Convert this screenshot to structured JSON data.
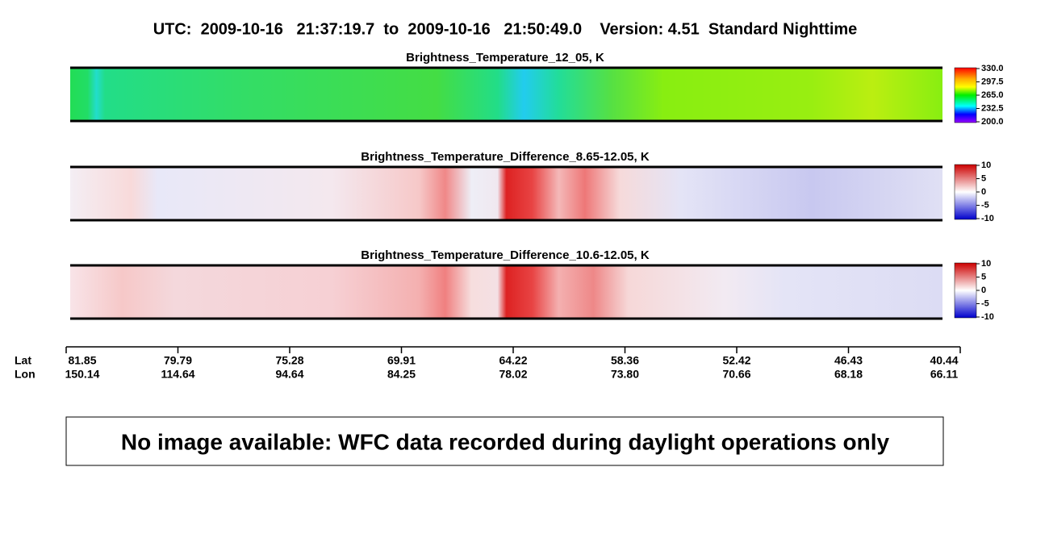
{
  "title": "UTC:  2009-10-16   21:37:19.7  to  2009-10-16   21:50:49.0    Version: 4.51  Standard Nighttime",
  "panels": [
    {
      "title": "Brightness_Temperature_12_05, K",
      "colorbar_labels": [
        "330.0",
        "297.5",
        "265.0",
        "232.5",
        "200.0"
      ]
    },
    {
      "title": "Brightness_Temperature_Difference_8.65-12.05, K",
      "colorbar_labels": [
        "10",
        "5",
        "0",
        "-5",
        "-10"
      ]
    },
    {
      "title": "Brightness_Temperature_Difference_10.6-12.05, K",
      "colorbar_labels": [
        "10",
        "5",
        "0",
        "-5",
        "-10"
      ]
    }
  ],
  "axis": {
    "row_labels": [
      "Lat",
      "Lon"
    ],
    "ticks": [
      {
        "lat": "81.85",
        "lon": "150.14"
      },
      {
        "lat": "79.79",
        "lon": "114.64"
      },
      {
        "lat": "75.28",
        "lon": "94.64"
      },
      {
        "lat": "69.91",
        "lon": "84.25"
      },
      {
        "lat": "64.22",
        "lon": "78.02"
      },
      {
        "lat": "58.36",
        "lon": "73.80"
      },
      {
        "lat": "52.42",
        "lon": "70.66"
      },
      {
        "lat": "46.43",
        "lon": "68.18"
      },
      {
        "lat": "40.44",
        "lon": "66.11"
      }
    ]
  },
  "notice": "No image available: WFC data recorded during daylight operations only"
}
